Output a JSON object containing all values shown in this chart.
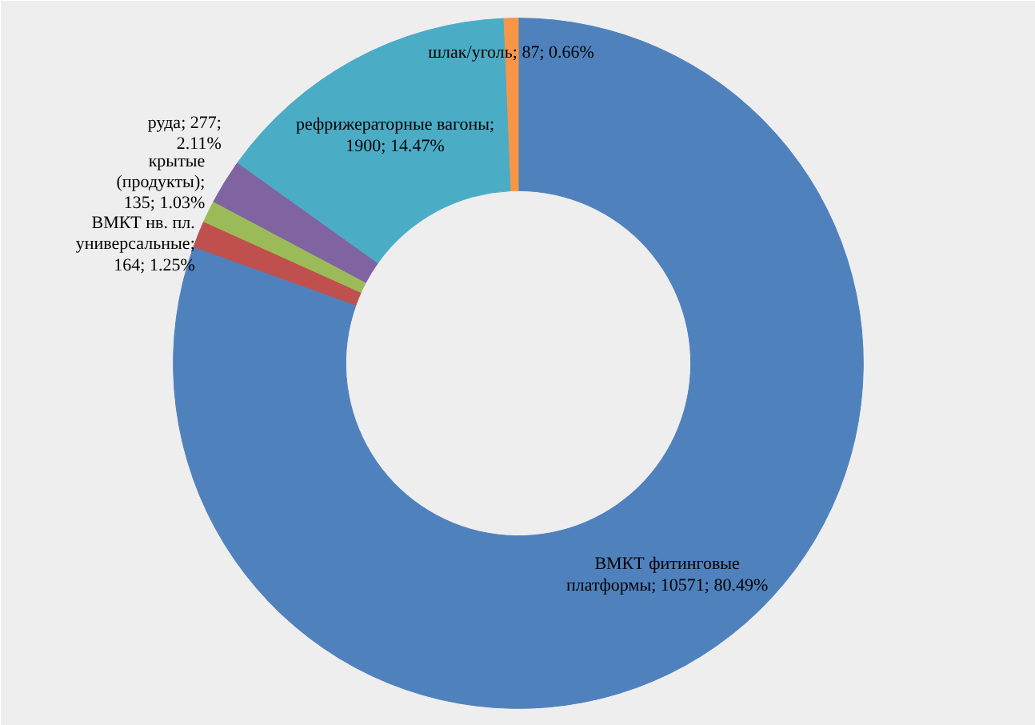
{
  "chart_data": {
    "type": "donut",
    "categories": [
      "ВМКТ фитинговые платформы",
      "ВМКТ нв. пл. универсальные",
      "крытые (продукты)",
      "руда",
      "рефрижераторные вагоны",
      "шлак/уголь"
    ],
    "values": [
      10571,
      164,
      135,
      277,
      1900,
      87
    ],
    "value_labels": [
      "; 10571; 80.49%",
      "; 164; 1.25%",
      "; 135; 1.03%",
      "; 277; 2.11%",
      "; 1900; 14.47%",
      "; 87; 0.66%"
    ],
    "colors": [
      "#4f81bd",
      "#c0504d",
      "#9bbb59",
      "#8064a2",
      "#4bacc6",
      "#f79646"
    ]
  }
}
